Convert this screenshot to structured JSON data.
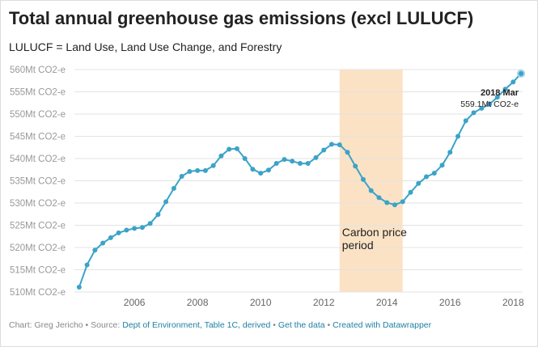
{
  "title": "Total annual greenhouse gas emissions (excl LULUCF)",
  "subtitle": "LULUCF = Land Use, Land Use Change, and Forestry",
  "footer": {
    "prefix": "Chart: Greg Jericho • Source: ",
    "source_link": "Dept of Environment, Table 1C, derived",
    "sep1": " • ",
    "get_data": "Get the data",
    "sep2": " • ",
    "created": "Created with Datawrapper"
  },
  "colors": {
    "line": "#3ba3c7",
    "marker_fill": "#3ba3c7",
    "marker_stroke": "#ffffff",
    "shade": "#fbe2c5",
    "grid": "#e3e3e3"
  },
  "chart_data": {
    "type": "line",
    "title": "Total annual greenhouse gas emissions (excl LULUCF)",
    "subtitle": "LULUCF = Land Use, Land Use Change, and Forestry",
    "xlabel": "",
    "ylabel": "",
    "x_ticks": [
      2006,
      2008,
      2010,
      2012,
      2014,
      2016,
      2018
    ],
    "y_ticks": [
      "510Mt CO2-e",
      "515Mt CO2-e",
      "520Mt CO2-e",
      "525Mt CO2-e",
      "530Mt CO2-e",
      "535Mt CO2-e",
      "540Mt CO2-e",
      "545Mt CO2-e",
      "550Mt CO2-e",
      "555Mt CO2-e",
      "560Mt CO2-e"
    ],
    "y_tick_values": [
      510,
      515,
      520,
      525,
      530,
      535,
      540,
      545,
      550,
      555,
      560
    ],
    "xlim": [
      2004.1,
      2018.3
    ],
    "ylim": [
      510,
      560
    ],
    "grid": true,
    "shaded_region": {
      "x_start": 2012.5,
      "x_end": 2014.5,
      "label_lines": [
        "Carbon price",
        "period"
      ]
    },
    "annotation": {
      "date": "2018 Mar",
      "value": "559.1Mt CO2-e"
    },
    "series": [
      {
        "x": [
          2004.25,
          2004.5,
          2004.75,
          2005.0,
          2005.25,
          2005.5,
          2005.75,
          2006.0,
          2006.25,
          2006.5,
          2006.75,
          2007.0,
          2007.25,
          2007.5,
          2007.75,
          2008.0,
          2008.25,
          2008.5,
          2008.75,
          2009.0,
          2009.25,
          2009.5,
          2009.75,
          2010.0,
          2010.25,
          2010.5,
          2010.75,
          2011.0,
          2011.25,
          2011.5,
          2011.75,
          2012.0,
          2012.25,
          2012.5,
          2012.75,
          2013.0,
          2013.25,
          2013.5,
          2013.75,
          2014.0,
          2014.25,
          2014.5,
          2014.75,
          2015.0,
          2015.25,
          2015.5,
          2015.75,
          2016.0,
          2016.25,
          2016.5,
          2016.75,
          2017.0,
          2017.25,
          2017.5,
          2017.75,
          2018.0,
          2018.25
        ],
        "values": [
          511.1,
          516.1,
          519.4,
          521.0,
          522.2,
          523.3,
          523.9,
          524.3,
          524.5,
          525.4,
          527.4,
          530.3,
          533.3,
          536.0,
          537.1,
          537.3,
          537.3,
          538.4,
          540.6,
          542.1,
          542.2,
          540.0,
          537.6,
          536.7,
          537.4,
          538.9,
          539.8,
          539.4,
          538.9,
          538.9,
          540.2,
          541.9,
          543.2,
          543.1,
          541.4,
          538.3,
          535.3,
          532.8,
          531.2,
          530.1,
          529.6,
          530.3,
          532.4,
          534.4,
          535.9,
          536.7,
          538.5,
          541.4,
          545.0,
          548.5,
          550.3,
          551.3,
          552.2,
          553.8,
          555.6,
          557.2,
          559.1
        ]
      }
    ]
  }
}
